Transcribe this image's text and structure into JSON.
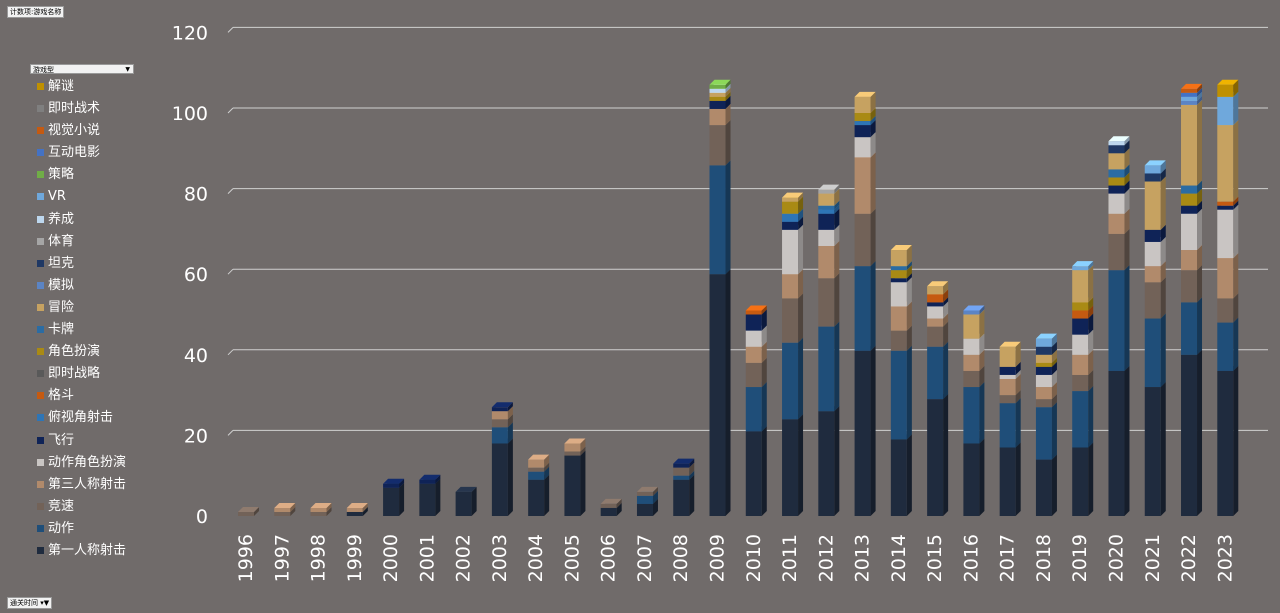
{
  "pivot": {
    "top_field": "计数项:游戏名称",
    "legend_field": "游戏型",
    "axis_field": "通关时间"
  },
  "icons": {
    "dropdown": "dropdown-arrow-icon",
    "filter": "filter-icon"
  },
  "chart_data": {
    "type": "bar",
    "stacked": true,
    "style": "3d-column",
    "categories": [
      "1996",
      "1997",
      "1998",
      "1999",
      "2000",
      "2001",
      "2002",
      "2003",
      "2004",
      "2005",
      "2006",
      "2007",
      "2008",
      "2009",
      "2010",
      "2011",
      "2012",
      "2013",
      "2014",
      "2015",
      "2016",
      "2017",
      "2018",
      "2019",
      "2020",
      "2021",
      "2022",
      "2023"
    ],
    "ylim": [
      0,
      120
    ],
    "yticks": [
      0,
      20,
      40,
      60,
      80,
      100,
      120
    ],
    "grid": true,
    "legend_position": "left",
    "series": [
      {
        "name": "第一人称射击",
        "color": "#1f2b3e",
        "values": [
          0,
          0,
          0,
          1,
          7,
          8,
          6,
          18,
          9,
          15,
          2,
          3,
          9,
          60,
          21,
          24,
          26,
          41,
          19,
          29,
          18,
          17,
          14,
          17,
          36,
          32,
          40,
          36
        ]
      },
      {
        "name": "动作",
        "color": "#1f4e79",
        "values": [
          0,
          0,
          0,
          0,
          0,
          0,
          0,
          4,
          2,
          0,
          0,
          2,
          1,
          27,
          11,
          19,
          21,
          21,
          22,
          13,
          14,
          11,
          13,
          14,
          25,
          17,
          13,
          12
        ]
      },
      {
        "name": "竞速",
        "color": "#726258",
        "values": [
          1,
          1,
          1,
          0,
          0,
          0,
          0,
          2,
          1,
          1,
          1,
          1,
          2,
          10,
          6,
          11,
          12,
          13,
          5,
          5,
          4,
          2,
          2,
          4,
          9,
          9,
          8,
          6
        ]
      },
      {
        "name": "第三人称射击",
        "color": "#b18a6b",
        "values": [
          0,
          1,
          1,
          1,
          0,
          0,
          0,
          2,
          2,
          2,
          0,
          0,
          0,
          4,
          4,
          6,
          8,
          14,
          6,
          2,
          4,
          4,
          3,
          5,
          5,
          4,
          5,
          10
        ]
      },
      {
        "name": "动作角色扮演",
        "color": "#c9c5c3",
        "values": [
          0,
          0,
          0,
          0,
          0,
          0,
          0,
          0,
          0,
          0,
          0,
          0,
          0,
          0,
          4,
          11,
          4,
          5,
          6,
          3,
          4,
          1,
          3,
          5,
          5,
          6,
          9,
          12
        ]
      },
      {
        "name": "飞行",
        "color": "#0f2357",
        "values": [
          0,
          0,
          0,
          0,
          1,
          1,
          0,
          1,
          0,
          0,
          0,
          0,
          1,
          2,
          4,
          2,
          4,
          3,
          1,
          1,
          0,
          2,
          2,
          4,
          2,
          3,
          2,
          1
        ]
      },
      {
        "name": "俯视角射击",
        "color": "#2e75b6",
        "values": [
          0,
          0,
          0,
          0,
          0,
          0,
          0,
          0,
          0,
          0,
          0,
          0,
          0,
          0,
          0,
          2,
          1,
          1,
          0,
          0,
          0,
          0,
          0,
          0,
          0,
          0,
          0,
          0
        ]
      },
      {
        "name": "格斗",
        "color": "#c55a11",
        "values": [
          0,
          0,
          0,
          0,
          0,
          0,
          0,
          0,
          0,
          0,
          0,
          0,
          0,
          0,
          1,
          0,
          0,
          0,
          0,
          2,
          0,
          0,
          0,
          2,
          0,
          0,
          0,
          1
        ]
      },
      {
        "name": "即时战略",
        "color": "#595959",
        "values": [
          0,
          0,
          0,
          0,
          0,
          0,
          0,
          0,
          0,
          0,
          0,
          0,
          0,
          0,
          0,
          0,
          0,
          0,
          0,
          0,
          0,
          0,
          0,
          0,
          0,
          0,
          0,
          0
        ]
      },
      {
        "name": "角色扮演",
        "color": "#a98a14",
        "values": [
          0,
          0,
          0,
          0,
          0,
          0,
          0,
          0,
          0,
          0,
          0,
          0,
          0,
          1,
          0,
          3,
          0,
          2,
          2,
          0,
          0,
          0,
          1,
          2,
          2,
          0,
          3,
          0
        ]
      },
      {
        "name": "卡牌",
        "color": "#2b6ca3",
        "values": [
          0,
          0,
          0,
          0,
          0,
          0,
          0,
          0,
          0,
          0,
          0,
          0,
          0,
          0,
          0,
          0,
          1,
          0,
          1,
          0,
          0,
          0,
          0,
          0,
          2,
          0,
          2,
          0
        ]
      },
      {
        "name": "冒险",
        "color": "#c6a261",
        "values": [
          0,
          0,
          0,
          0,
          0,
          0,
          0,
          0,
          0,
          0,
          0,
          0,
          0,
          1,
          0,
          1,
          3,
          4,
          4,
          2,
          6,
          5,
          2,
          8,
          4,
          12,
          20,
          19
        ]
      },
      {
        "name": "模拟",
        "color": "#5b84c4",
        "values": [
          0,
          0,
          0,
          0,
          0,
          0,
          0,
          0,
          0,
          0,
          0,
          0,
          0,
          0,
          0,
          0,
          0,
          0,
          0,
          0,
          1,
          0,
          0,
          0,
          0,
          0,
          1,
          0
        ]
      },
      {
        "name": "坦克",
        "color": "#1f3864",
        "values": [
          0,
          0,
          0,
          0,
          0,
          0,
          0,
          0,
          0,
          0,
          0,
          0,
          0,
          0,
          0,
          0,
          0,
          0,
          0,
          0,
          0,
          0,
          2,
          0,
          2,
          2,
          0,
          0
        ]
      },
      {
        "name": "体育",
        "color": "#a5a5a5",
        "values": [
          0,
          0,
          0,
          0,
          0,
          0,
          0,
          0,
          0,
          0,
          0,
          0,
          0,
          0,
          0,
          0,
          1,
          0,
          0,
          0,
          0,
          0,
          0,
          0,
          0,
          0,
          0,
          0
        ]
      },
      {
        "name": "养成",
        "color": "#bdd7ee",
        "values": [
          0,
          0,
          0,
          0,
          0,
          0,
          0,
          0,
          0,
          0,
          0,
          0,
          0,
          1,
          0,
          0,
          0,
          0,
          0,
          0,
          0,
          0,
          0,
          0,
          1,
          0,
          0,
          0
        ]
      },
      {
        "name": "VR",
        "color": "#6fa8dc",
        "values": [
          0,
          0,
          0,
          0,
          0,
          0,
          0,
          0,
          0,
          0,
          0,
          0,
          0,
          0,
          0,
          0,
          0,
          0,
          0,
          0,
          0,
          0,
          2,
          1,
          0,
          2,
          1,
          7
        ]
      },
      {
        "name": "策略",
        "color": "#70ad47",
        "values": [
          0,
          0,
          0,
          0,
          0,
          0,
          0,
          0,
          0,
          0,
          0,
          0,
          0,
          1,
          0,
          0,
          0,
          0,
          0,
          0,
          0,
          0,
          0,
          0,
          0,
          0,
          0,
          0
        ]
      },
      {
        "name": "互动电影",
        "color": "#4472c4",
        "values": [
          0,
          0,
          0,
          0,
          0,
          0,
          0,
          0,
          0,
          0,
          0,
          0,
          0,
          0,
          0,
          0,
          0,
          0,
          0,
          0,
          0,
          0,
          0,
          0,
          0,
          0,
          1,
          0
        ]
      },
      {
        "name": "视觉小说",
        "color": "#c55a11",
        "values": [
          0,
          0,
          0,
          0,
          0,
          0,
          0,
          0,
          0,
          0,
          0,
          0,
          0,
          0,
          0,
          0,
          0,
          0,
          0,
          0,
          0,
          0,
          0,
          0,
          0,
          0,
          1,
          0
        ]
      },
      {
        "name": "即时战术",
        "color": "#7f7f7f",
        "values": [
          0,
          0,
          0,
          0,
          0,
          0,
          0,
          0,
          0,
          0,
          0,
          0,
          0,
          0,
          0,
          0,
          0,
          0,
          0,
          0,
          0,
          0,
          0,
          0,
          0,
          0,
          0,
          0
        ]
      },
      {
        "name": "解谜",
        "color": "#bf9000",
        "values": [
          0,
          0,
          0,
          0,
          0,
          0,
          0,
          0,
          0,
          0,
          0,
          0,
          0,
          0,
          0,
          0,
          0,
          0,
          0,
          0,
          0,
          0,
          0,
          0,
          0,
          0,
          0,
          3
        ]
      }
    ]
  }
}
